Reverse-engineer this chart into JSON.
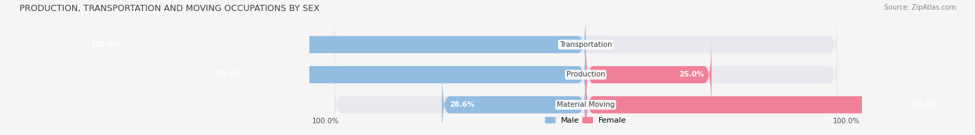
{
  "title": "PRODUCTION, TRANSPORTATION AND MOVING OCCUPATIONS BY SEX",
  "source": "Source: ZipAtlas.com",
  "categories": [
    "Transportation",
    "Production",
    "Material Moving"
  ],
  "male_values": [
    100.0,
    75.0,
    28.6
  ],
  "female_values": [
    0.0,
    25.0,
    71.4
  ],
  "male_color": "#92bce0",
  "female_color": "#f08098",
  "bar_bg_color": "#e8e8ee",
  "bar_height": 0.55,
  "male_legend_color": "#92bce0",
  "female_legend_color": "#f08098",
  "axis_label_color": "#555555",
  "title_color": "#404040",
  "source_color": "#888888",
  "category_text_color": "#404040",
  "figsize": [
    14.06,
    1.96
  ],
  "dpi": 100
}
